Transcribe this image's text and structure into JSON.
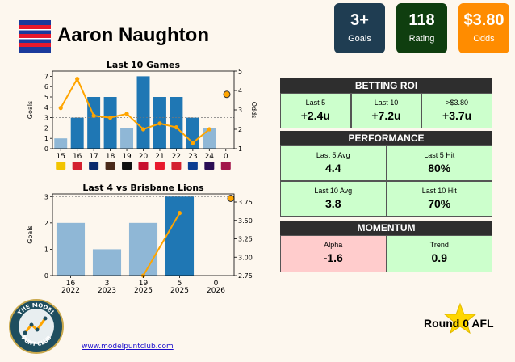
{
  "player": {
    "name": "Aaron Naughton"
  },
  "stats": [
    {
      "value": "3+",
      "label": "Goals",
      "color": "#1f3d52"
    },
    {
      "value": "118",
      "label": "Rating",
      "color": "#0f3e0f"
    },
    {
      "value": "$3.80",
      "label": "Odds",
      "color": "#ff8c00"
    }
  ],
  "chart_data": [
    {
      "type": "bar",
      "title": "Last 10 Games",
      "ylabel": "Goals",
      "y2label": "Odds",
      "categories": [
        "15",
        "16",
        "17",
        "18",
        "19",
        "20",
        "21",
        "22",
        "23",
        "24",
        "0"
      ],
      "values": [
        1,
        3,
        5,
        5,
        2,
        7,
        5,
        5,
        3,
        2,
        null
      ],
      "bar_shade": [
        "light",
        "dark",
        "dark",
        "dark",
        "light",
        "dark",
        "dark",
        "dark",
        "dark",
        "light",
        null
      ],
      "odds": [
        3.1,
        4.6,
        2.7,
        2.6,
        2.8,
        2.0,
        2.3,
        2.1,
        1.3,
        2.0
      ],
      "next_odds": 3.8,
      "ylim": [
        0,
        7.5
      ],
      "y2lim": [
        1,
        5
      ],
      "yticks": [
        0,
        1,
        2,
        3,
        4,
        5,
        6,
        7
      ],
      "y2ticks": [
        1,
        2,
        3,
        4,
        5
      ],
      "threshold": 3,
      "opponents": [
        "Richmond",
        "Sydney",
        "Adelaide",
        "Hawthorn",
        "St Kilda",
        "Essendon",
        "Gold Coast",
        "Sydney",
        "West Coast",
        "Fremantle",
        "Brisbane"
      ]
    },
    {
      "type": "bar",
      "title": "Last 4 vs Brisbane Lions",
      "ylabel": "Goals",
      "categories": [
        "16",
        "3",
        "19",
        "5",
        "0"
      ],
      "years": [
        "2022",
        "2023",
        "2025",
        "2025",
        "2026"
      ],
      "values": [
        2,
        1,
        2,
        3,
        null
      ],
      "bar_shade": [
        "light",
        "light",
        "light",
        "dark",
        null
      ],
      "odds": [
        null,
        null,
        2.75,
        3.6,
        null
      ],
      "next_odds": 3.8,
      "ylim": [
        0,
        3.1
      ],
      "y2lim": [
        2.75,
        3.86
      ],
      "yticks": [
        0,
        1,
        2,
        3
      ],
      "y2ticks": [
        2.75,
        3.0,
        3.25,
        3.5,
        3.75
      ],
      "threshold": 3
    }
  ],
  "roi": {
    "header": "BETTING ROI",
    "items": [
      {
        "label": "Last 5",
        "value": "+2.4u"
      },
      {
        "label": "Last 10",
        "value": "+7.2u"
      },
      {
        "label": ">$3.80",
        "value": "+3.7u"
      }
    ]
  },
  "performance": {
    "header": "PERFORMANCE",
    "items": [
      {
        "label": "Last 5 Avg",
        "value": "4.4"
      },
      {
        "label": "Last 5 Hit",
        "value": "80%"
      },
      {
        "label": "Last 10 Avg",
        "value": "3.8"
      },
      {
        "label": "Last 10 Hit",
        "value": "70%"
      }
    ]
  },
  "momentum": {
    "header": "MOMENTUM",
    "items": [
      {
        "label": "Alpha",
        "value": "-1.6"
      },
      {
        "label": "Trend",
        "value": "0.9"
      }
    ]
  },
  "footer": {
    "round": "Round 0 AFL",
    "website": "www.modelpuntclub.com",
    "logo_text": "THE MODEL PUNT CLUB"
  },
  "colors": {
    "dark_bar": "#1f77b4",
    "light_bar": "#8fb7d6",
    "odds_line": "#ffa500"
  }
}
